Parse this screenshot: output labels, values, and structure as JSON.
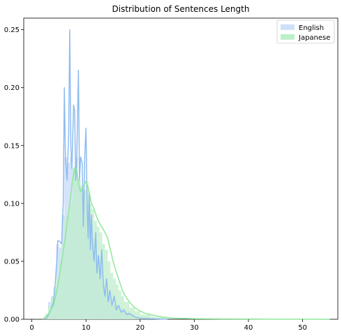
{
  "chart_data": {
    "type": "area",
    "title": "Distribution of Sentences Length",
    "xlabel": "",
    "ylabel": "",
    "xlim": [
      -1.5,
      56.5
    ],
    "ylim": [
      0,
      0.26
    ],
    "xticks": [
      0,
      10,
      20,
      30,
      40,
      50
    ],
    "yticks": [
      0.0,
      0.05,
      0.1,
      0.15,
      0.2,
      0.25
    ],
    "ytick_labels": [
      "0.00",
      "0.05",
      "0.10",
      "0.15",
      "0.20",
      "0.25"
    ],
    "grid": false,
    "legend_position": "top-right",
    "histogram_bars_shown": true,
    "series": [
      {
        "name": "English",
        "line_color": "#8fbcf0",
        "fill_color": "#cfe0fa",
        "bins": [
          {
            "x0": 3.0,
            "x1": 3.5,
            "h": 0.015
          },
          {
            "x0": 3.5,
            "x1": 4.0,
            "h": 0.02
          },
          {
            "x0": 4.0,
            "x1": 4.5,
            "h": 0.025
          },
          {
            "x0": 4.5,
            "x1": 5.0,
            "h": 0.065
          },
          {
            "x0": 5.0,
            "x1": 5.5,
            "h": 0.062
          },
          {
            "x0": 5.5,
            "x1": 6.0,
            "h": 0.09
          },
          {
            "x0": 6.0,
            "x1": 6.5,
            "h": 0.14
          },
          {
            "x0": 6.5,
            "x1": 7.0,
            "h": 0.135
          },
          {
            "x0": 7.0,
            "x1": 7.5,
            "h": 0.14
          },
          {
            "x0": 7.5,
            "x1": 8.0,
            "h": 0.13
          },
          {
            "x0": 8.0,
            "x1": 8.5,
            "h": 0.14
          },
          {
            "x0": 8.5,
            "x1": 9.0,
            "h": 0.12
          },
          {
            "x0": 9.0,
            "x1": 9.5,
            "h": 0.115
          },
          {
            "x0": 9.5,
            "x1": 10.0,
            "h": 0.11
          },
          {
            "x0": 10.0,
            "x1": 10.5,
            "h": 0.1
          },
          {
            "x0": 10.5,
            "x1": 11.0,
            "h": 0.085
          },
          {
            "x0": 11.0,
            "x1": 11.5,
            "h": 0.07
          },
          {
            "x0": 11.5,
            "x1": 12.0,
            "h": 0.06
          },
          {
            "x0": 12.0,
            "x1": 12.5,
            "h": 0.045
          },
          {
            "x0": 12.5,
            "x1": 13.0,
            "h": 0.05
          },
          {
            "x0": 13.0,
            "x1": 13.5,
            "h": 0.03
          },
          {
            "x0": 13.5,
            "x1": 14.0,
            "h": 0.025
          },
          {
            "x0": 14.0,
            "x1": 14.5,
            "h": 0.02
          },
          {
            "x0": 14.5,
            "x1": 15.0,
            "h": 0.015
          },
          {
            "x0": 15.0,
            "x1": 16.0,
            "h": 0.012
          },
          {
            "x0": 16.0,
            "x1": 17.0,
            "h": 0.009
          },
          {
            "x0": 17.0,
            "x1": 18.0,
            "h": 0.007
          },
          {
            "x0": 18.0,
            "x1": 19.0,
            "h": 0.004
          }
        ],
        "curve": [
          [
            2.5,
            0.0
          ],
          [
            3.0,
            0.003
          ],
          [
            3.5,
            0.008
          ],
          [
            4.0,
            0.015
          ],
          [
            4.3,
            0.03
          ],
          [
            4.6,
            0.05
          ],
          [
            4.8,
            0.068
          ],
          [
            5.2,
            0.067
          ],
          [
            5.5,
            0.065
          ],
          [
            5.8,
            0.1
          ],
          [
            6.0,
            0.2
          ],
          [
            6.2,
            0.14
          ],
          [
            6.5,
            0.12
          ],
          [
            6.8,
            0.16
          ],
          [
            7.0,
            0.25
          ],
          [
            7.2,
            0.15
          ],
          [
            7.4,
            0.13
          ],
          [
            7.7,
            0.185
          ],
          [
            7.9,
            0.18
          ],
          [
            8.1,
            0.12
          ],
          [
            8.3,
            0.14
          ],
          [
            8.6,
            0.215
          ],
          [
            8.8,
            0.12
          ],
          [
            9.0,
            0.14
          ],
          [
            9.3,
            0.135
          ],
          [
            9.5,
            0.08
          ],
          [
            9.8,
            0.145
          ],
          [
            10.0,
            0.165
          ],
          [
            10.2,
            0.1
          ],
          [
            10.4,
            0.07
          ],
          [
            10.6,
            0.11
          ],
          [
            10.8,
            0.06
          ],
          [
            11.0,
            0.09
          ],
          [
            11.2,
            0.065
          ],
          [
            11.5,
            0.05
          ],
          [
            11.8,
            0.075
          ],
          [
            12.0,
            0.04
          ],
          [
            12.3,
            0.055
          ],
          [
            12.6,
            0.035
          ],
          [
            12.9,
            0.06
          ],
          [
            13.2,
            0.03
          ],
          [
            13.5,
            0.02
          ],
          [
            13.8,
            0.035
          ],
          [
            14.1,
            0.015
          ],
          [
            14.4,
            0.025
          ],
          [
            14.8,
            0.012
          ],
          [
            15.2,
            0.02
          ],
          [
            15.6,
            0.008
          ],
          [
            16.0,
            0.012
          ],
          [
            16.5,
            0.006
          ],
          [
            17.0,
            0.008
          ],
          [
            17.5,
            0.004
          ],
          [
            18.0,
            0.005
          ],
          [
            19.0,
            0.002
          ],
          [
            20.0,
            0.001
          ],
          [
            22.0,
            0.0005
          ],
          [
            25.0,
            0.0
          ]
        ]
      },
      {
        "name": "Japanese",
        "line_color": "#8fe89a",
        "fill_color": "#bfeecb",
        "bins": [
          {
            "x0": 2.5,
            "x1": 3.0,
            "h": 0.005
          },
          {
            "x0": 3.0,
            "x1": 3.5,
            "h": 0.012
          },
          {
            "x0": 3.5,
            "x1": 4.0,
            "h": 0.018
          },
          {
            "x0": 4.0,
            "x1": 4.5,
            "h": 0.028
          },
          {
            "x0": 4.5,
            "x1": 5.0,
            "h": 0.035
          },
          {
            "x0": 5.0,
            "x1": 5.5,
            "h": 0.05
          },
          {
            "x0": 5.5,
            "x1": 6.0,
            "h": 0.065
          },
          {
            "x0": 6.0,
            "x1": 6.5,
            "h": 0.088
          },
          {
            "x0": 6.5,
            "x1": 7.0,
            "h": 0.09
          },
          {
            "x0": 7.0,
            "x1": 7.5,
            "h": 0.1
          },
          {
            "x0": 7.5,
            "x1": 8.0,
            "h": 0.13
          },
          {
            "x0": 8.0,
            "x1": 8.5,
            "h": 0.132
          },
          {
            "x0": 8.5,
            "x1": 9.0,
            "h": 0.118
          },
          {
            "x0": 9.0,
            "x1": 9.5,
            "h": 0.115
          },
          {
            "x0": 9.5,
            "x1": 10.0,
            "h": 0.112
          },
          {
            "x0": 10.0,
            "x1": 10.5,
            "h": 0.118
          },
          {
            "x0": 10.5,
            "x1": 11.0,
            "h": 0.1
          },
          {
            "x0": 11.0,
            "x1": 11.5,
            "h": 0.095
          },
          {
            "x0": 11.5,
            "x1": 12.0,
            "h": 0.085
          },
          {
            "x0": 12.0,
            "x1": 12.5,
            "h": 0.08
          },
          {
            "x0": 12.5,
            "x1": 13.0,
            "h": 0.075
          },
          {
            "x0": 13.0,
            "x1": 13.5,
            "h": 0.065
          },
          {
            "x0": 13.5,
            "x1": 14.0,
            "h": 0.06
          },
          {
            "x0": 14.0,
            "x1": 14.5,
            "h": 0.05
          },
          {
            "x0": 14.5,
            "x1": 15.0,
            "h": 0.04
          },
          {
            "x0": 15.0,
            "x1": 15.5,
            "h": 0.035
          },
          {
            "x0": 15.5,
            "x1": 16.0,
            "h": 0.03
          },
          {
            "x0": 16.0,
            "x1": 16.5,
            "h": 0.025
          },
          {
            "x0": 16.5,
            "x1": 17.0,
            "h": 0.02
          },
          {
            "x0": 17.0,
            "x1": 18.0,
            "h": 0.015
          },
          {
            "x0": 18.0,
            "x1": 19.0,
            "h": 0.01
          },
          {
            "x0": 19.0,
            "x1": 20.0,
            "h": 0.007
          },
          {
            "x0": 20.0,
            "x1": 22.0,
            "h": 0.004
          },
          {
            "x0": 22.0,
            "x1": 25.0,
            "h": 0.002
          }
        ],
        "curve": [
          [
            2.0,
            0.0
          ],
          [
            3.0,
            0.004
          ],
          [
            4.0,
            0.012
          ],
          [
            4.5,
            0.022
          ],
          [
            5.0,
            0.035
          ],
          [
            5.5,
            0.05
          ],
          [
            6.0,
            0.065
          ],
          [
            6.5,
            0.082
          ],
          [
            7.0,
            0.1
          ],
          [
            7.5,
            0.12
          ],
          [
            7.9,
            0.131
          ],
          [
            8.3,
            0.128
          ],
          [
            8.7,
            0.115
          ],
          [
            9.0,
            0.11
          ],
          [
            9.5,
            0.115
          ],
          [
            10.0,
            0.119
          ],
          [
            10.5,
            0.112
          ],
          [
            11.0,
            0.1
          ],
          [
            11.5,
            0.095
          ],
          [
            12.0,
            0.088
          ],
          [
            12.5,
            0.083
          ],
          [
            13.0,
            0.079
          ],
          [
            13.5,
            0.075
          ],
          [
            14.0,
            0.07
          ],
          [
            14.5,
            0.06
          ],
          [
            15.0,
            0.05
          ],
          [
            15.5,
            0.042
          ],
          [
            16.0,
            0.035
          ],
          [
            16.5,
            0.028
          ],
          [
            17.0,
            0.022
          ],
          [
            18.0,
            0.015
          ],
          [
            19.0,
            0.01
          ],
          [
            20.0,
            0.007
          ],
          [
            21.0,
            0.005
          ],
          [
            22.0,
            0.004
          ],
          [
            24.0,
            0.002
          ],
          [
            26.0,
            0.001
          ],
          [
            30.0,
            0.0005
          ],
          [
            35.0,
            0.0003
          ],
          [
            40.0,
            0.0002
          ],
          [
            45.0,
            0.0001
          ],
          [
            50.0,
            0.0001
          ],
          [
            55.0,
            0.0
          ]
        ]
      }
    ]
  }
}
